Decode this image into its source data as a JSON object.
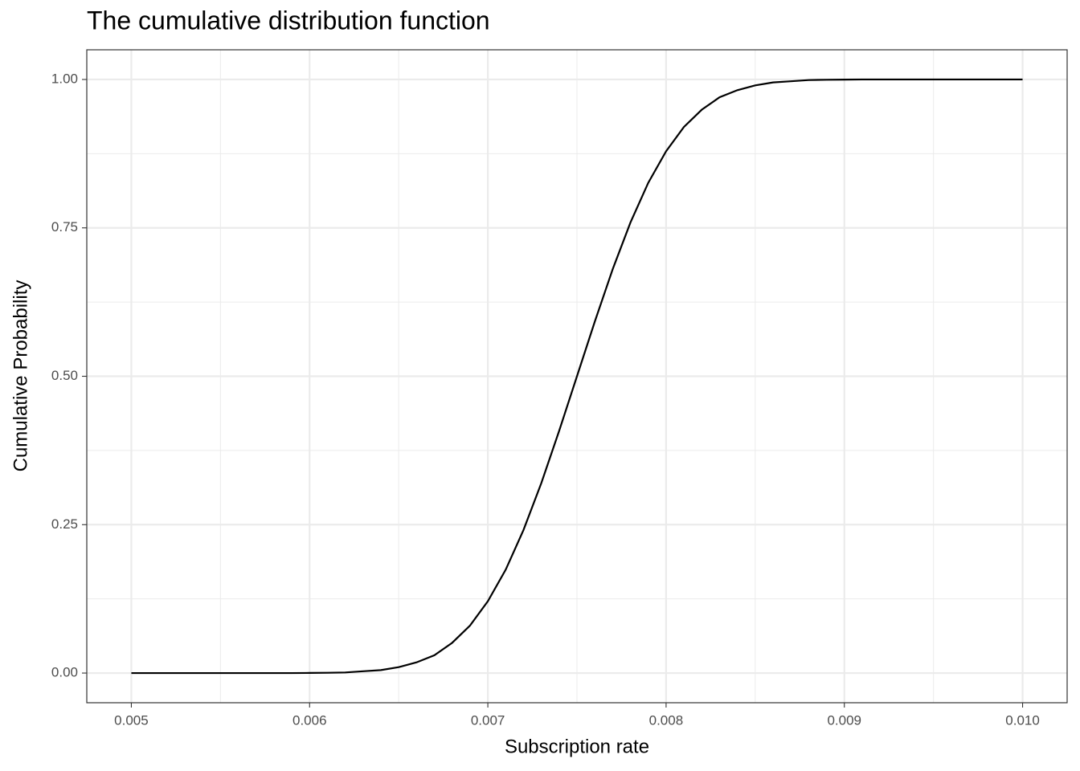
{
  "chart_data": {
    "type": "line",
    "title": "The cumulative distribution function",
    "x_label": "Subscription rate",
    "y_label": "Cumulative Probability",
    "x": [
      0.005,
      0.0051,
      0.0052,
      0.0053,
      0.0054,
      0.0055,
      0.0056,
      0.0057,
      0.0058,
      0.0059,
      0.006,
      0.0061,
      0.0062,
      0.0063,
      0.0064,
      0.0065,
      0.0066,
      0.0067,
      0.0068,
      0.0069,
      0.007,
      0.0071,
      0.0072,
      0.0073,
      0.0074,
      0.0075,
      0.0076,
      0.0077,
      0.0078,
      0.0079,
      0.008,
      0.0081,
      0.0082,
      0.0083,
      0.0084,
      0.0085,
      0.0086,
      0.0087,
      0.0088,
      0.0089,
      0.009,
      0.0091,
      0.0092,
      0.0093,
      0.0094,
      0.0095,
      0.0096,
      0.0097,
      0.0098,
      0.0099,
      0.01
    ],
    "series": [
      {
        "color": "#000000",
        "values": [
          0,
          0,
          0,
          0,
          0,
          0,
          0,
          0,
          0,
          0,
          0.0002,
          0.0005,
          0.001,
          0.003,
          0.005,
          0.01,
          0.018,
          0.03,
          0.051,
          0.08,
          0.121,
          0.174,
          0.241,
          0.32,
          0.408,
          0.5,
          0.592,
          0.68,
          0.759,
          0.826,
          0.879,
          0.92,
          0.949,
          0.97,
          0.982,
          0.99,
          0.995,
          0.997,
          0.999,
          0.9995,
          0.9998,
          1,
          1,
          1,
          1,
          1,
          1,
          1,
          1,
          1,
          1
        ]
      }
    ],
    "xlim": [
      0.00475,
      0.01025
    ],
    "ylim": [
      -0.05,
      1.05
    ],
    "xticks": [
      0.005,
      0.006,
      0.007,
      0.008,
      0.009,
      {
        "value": 0.01,
        "label": "0.010"
      }
    ],
    "yticks": [
      {
        "value": 0,
        "label": "0.00"
      },
      0.25,
      {
        "value": 0.5,
        "label": "0.50"
      },
      0.75,
      {
        "value": 1,
        "label": "1.00"
      }
    ],
    "grid": true
  }
}
